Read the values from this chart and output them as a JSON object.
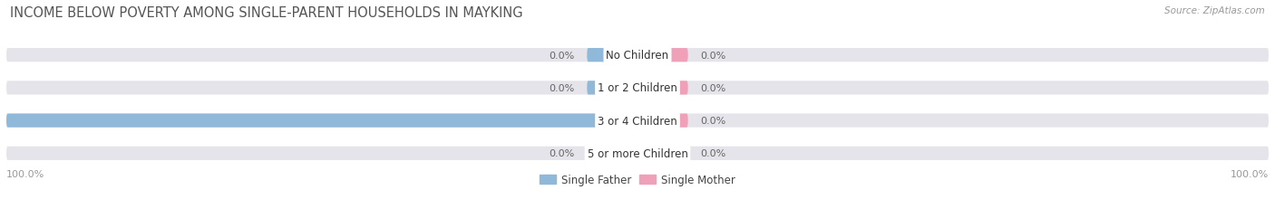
{
  "title": "INCOME BELOW POVERTY AMONG SINGLE-PARENT HOUSEHOLDS IN MAYKING",
  "source": "Source: ZipAtlas.com",
  "categories": [
    "No Children",
    "1 or 2 Children",
    "3 or 4 Children",
    "5 or more Children"
  ],
  "single_father": [
    0.0,
    0.0,
    100.0,
    0.0
  ],
  "single_mother": [
    0.0,
    0.0,
    0.0,
    0.0
  ],
  "father_color": "#90b8d8",
  "mother_color": "#f0a0b8",
  "bar_bg_color": "#e4e4ea",
  "bar_bg_color2": "#ededf2",
  "label_box_color": "#ffffff",
  "default_stub": 8.0,
  "bar_height": 0.42,
  "xlim_left": -100,
  "xlim_right": 100,
  "axis_label_left": "100.0%",
  "axis_label_right": "100.0%",
  "title_fontsize": 10.5,
  "label_fontsize": 8.5,
  "value_fontsize": 8.0,
  "source_fontsize": 7.5,
  "legend_fontsize": 8.5,
  "title_color": "#555555",
  "value_color": "#666666",
  "source_color": "#999999",
  "axis_tick_color": "#999999",
  "cat_label_color": "#333333"
}
